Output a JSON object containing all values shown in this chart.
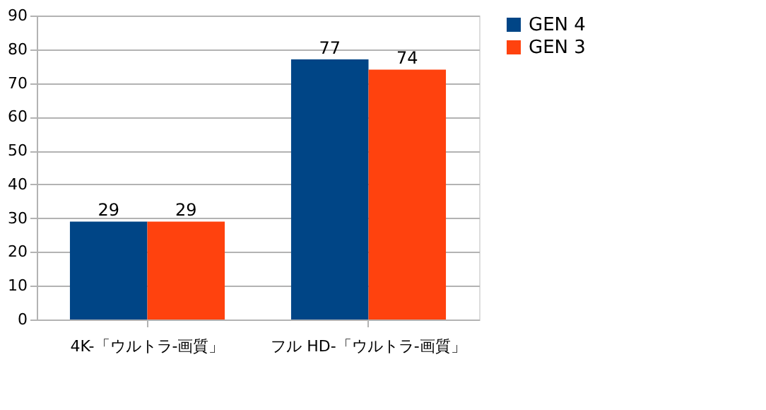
{
  "chart_data": {
    "type": "bar",
    "categories": [
      "4K-「ウルトラ-画質」",
      "フル HD-「ウルトラ-画質」"
    ],
    "series": [
      {
        "name": "GEN 4",
        "color": "#004586",
        "values": [
          29,
          77
        ]
      },
      {
        "name": "GEN 3",
        "color": "#ff420e",
        "values": [
          29,
          74
        ]
      }
    ],
    "ylim": [
      0,
      90
    ],
    "yticks": [
      0,
      10,
      20,
      30,
      40,
      50,
      60,
      70,
      80,
      90
    ],
    "grid": "y",
    "legend": "right",
    "data_labels": true
  }
}
